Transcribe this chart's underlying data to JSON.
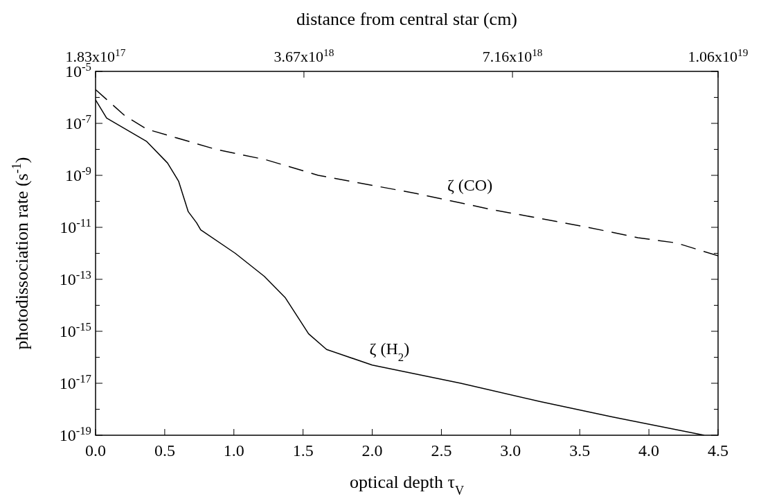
{
  "chart_data": {
    "type": "line",
    "xlabel": "optical depth   τ$_{V}$",
    "ylabel": "photodissociation rate (s$^{-1}$)",
    "x2label": "distance from central star (cm)",
    "log": "y",
    "grid": false,
    "xlim": [
      0,
      4.5
    ],
    "xticks": [
      {
        "value": 0,
        "label": "0.0"
      },
      {
        "value": 0.5,
        "label": "0.5"
      },
      {
        "value": 1,
        "label": "1.0"
      },
      {
        "value": 1.5,
        "label": "1.5"
      },
      {
        "value": 2,
        "label": "2.0"
      },
      {
        "value": 2.5,
        "label": "2.5"
      },
      {
        "value": 3,
        "label": "3.0"
      },
      {
        "value": 3.5,
        "label": "3.5"
      },
      {
        "value": 4,
        "label": "4.0"
      },
      {
        "value": 4.5,
        "label": "4.5"
      }
    ],
    "x2lim": [
      1.83e+17,
      1.06e+19
    ],
    "x2ticks": [
      {
        "value": 1.83e+17,
        "label": "1.83x10$^{17}$"
      },
      {
        "value": 3.67e+18,
        "label": "3.67x10$^{18}$"
      },
      {
        "value": 7.16e+18,
        "label": "7.16x10$^{18}$"
      },
      {
        "value": 1.06e+19,
        "label": "1.06x10$^{19}$"
      }
    ],
    "ylim": [
      1e-19,
      1e-05
    ],
    "yticks": [
      {
        "value": 1e-19,
        "label": "10$^{-19}$"
      },
      {
        "value": 1e-18,
        "label": null
      },
      {
        "value": 1e-17,
        "label": "10$^{-17}$"
      },
      {
        "value": 1e-16,
        "label": null
      },
      {
        "value": 1e-15,
        "label": "10$^{-15}$"
      },
      {
        "value": 1e-14,
        "label": null
      },
      {
        "value": 1e-13,
        "label": "10$^{-13}$"
      },
      {
        "value": 1e-12,
        "label": null
      },
      {
        "value": 1e-11,
        "label": "10$^{-11}$"
      },
      {
        "value": 1e-10,
        "label": null
      },
      {
        "value": 1e-09,
        "label": "10$^{-9}$"
      },
      {
        "value": 1e-08,
        "label": null
      },
      {
        "value": 1e-07,
        "label": "10$^{-7}$"
      },
      {
        "value": 1e-06,
        "label": null
      },
      {
        "value": 1e-05,
        "label": "10$^{-5}$"
      }
    ],
    "series": [
      {
        "name": "ζ (CO)",
        "color": "#000000",
        "line_style": "dashed",
        "x": [
          0,
          0.21,
          0.37,
          0.87,
          1.23,
          1.61,
          2.32,
          2.85,
          3.56,
          3.92,
          4.2,
          4.5
        ],
        "values": [
          2e-06,
          2e-07,
          6e-08,
          1e-08,
          4e-09,
          1e-09,
          2e-10,
          5e-11,
          1e-11,
          4e-12,
          2.5e-12,
          8e-13
        ]
      },
      {
        "name": "ζ (H$_{2}$)",
        "color": "#000000",
        "line_style": "solid",
        "x": [
          0,
          0.08,
          0.37,
          0.52,
          0.6,
          0.67,
          0.73,
          0.76,
          1.01,
          1.22,
          1.37,
          1.54,
          1.67,
          2.0,
          2.64,
          3.21,
          3.74,
          4.4
        ],
        "values": [
          8e-07,
          1.6e-07,
          2e-08,
          3e-09,
          6e-10,
          4e-11,
          1.5e-11,
          8e-12,
          1e-12,
          1.3e-13,
          2e-14,
          8e-16,
          2e-16,
          5e-17,
          1e-17,
          2e-18,
          5e-19,
          1e-19
        ]
      }
    ]
  }
}
